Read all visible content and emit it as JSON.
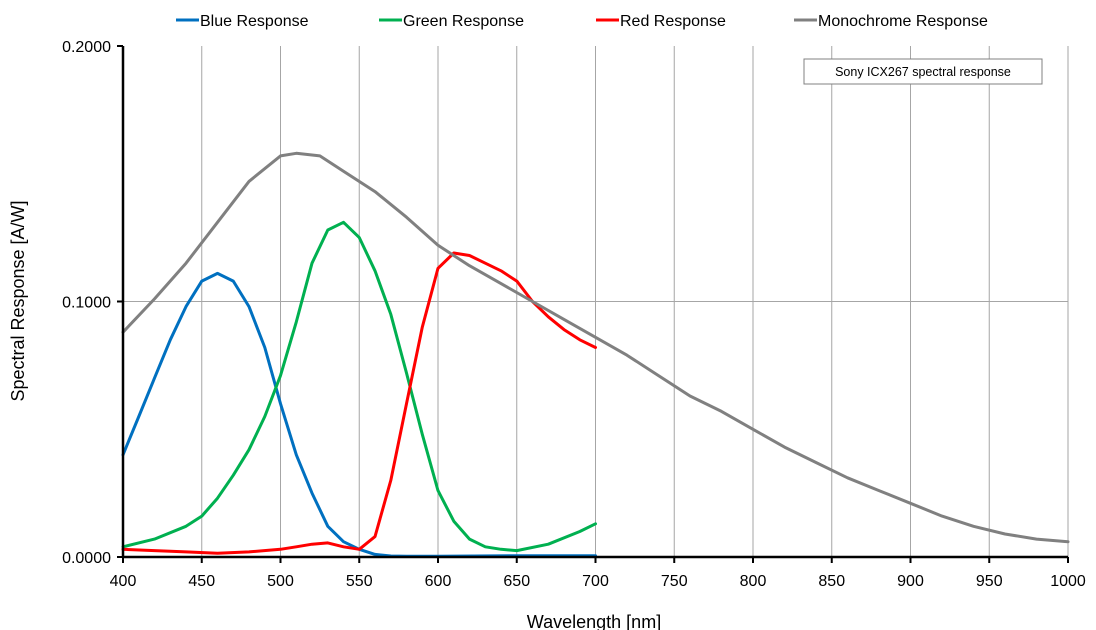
{
  "chart_data": {
    "type": "line",
    "title": "",
    "xlabel": "Wavelength [nm]",
    "ylabel": "Spectral Response [A/W]",
    "xlim": [
      400,
      1000
    ],
    "ylim": [
      0,
      0.2
    ],
    "xticks": [
      400,
      450,
      500,
      550,
      600,
      650,
      700,
      750,
      800,
      850,
      900,
      950,
      1000
    ],
    "xtick_labels": [
      "400",
      "450",
      "500",
      "550",
      "600",
      "650",
      "700",
      "750",
      "800",
      "850",
      "900",
      "950",
      "1000"
    ],
    "yticks": [
      0,
      0.1,
      0.2
    ],
    "ytick_labels": [
      "0.0000",
      "0.1000",
      "0.2000"
    ],
    "grid": "vertical lines at each x tick; horizontal line at 0.1000",
    "legend_position": "top",
    "annotation": "Sony ICX267 spectral response",
    "series": [
      {
        "name": "Blue Response",
        "color": "#0070c0",
        "x": [
          400,
          410,
          420,
          430,
          440,
          450,
          460,
          470,
          480,
          490,
          500,
          510,
          520,
          530,
          540,
          550,
          560,
          570,
          580,
          600,
          650,
          700
        ],
        "y": [
          0.04,
          0.055,
          0.07,
          0.085,
          0.098,
          0.108,
          0.111,
          0.108,
          0.098,
          0.082,
          0.06,
          0.04,
          0.025,
          0.012,
          0.006,
          0.003,
          0.001,
          0.0004,
          0.0003,
          0.0003,
          0.0005,
          0.0005
        ]
      },
      {
        "name": "Green Response",
        "color": "#00b050",
        "x": [
          400,
          420,
          440,
          450,
          460,
          470,
          480,
          490,
          500,
          510,
          520,
          530,
          540,
          550,
          560,
          570,
          580,
          590,
          600,
          610,
          620,
          630,
          640,
          650,
          670,
          690,
          700
        ],
        "y": [
          0.004,
          0.007,
          0.012,
          0.016,
          0.023,
          0.032,
          0.042,
          0.055,
          0.071,
          0.092,
          0.115,
          0.128,
          0.131,
          0.125,
          0.112,
          0.095,
          0.072,
          0.048,
          0.026,
          0.014,
          0.007,
          0.004,
          0.003,
          0.0025,
          0.005,
          0.01,
          0.013
        ]
      },
      {
        "name": "Red Response",
        "color": "#ff0000",
        "x": [
          400,
          420,
          440,
          460,
          480,
          500,
          510,
          520,
          530,
          540,
          550,
          560,
          570,
          580,
          590,
          600,
          610,
          620,
          630,
          640,
          650,
          660,
          670,
          680,
          690,
          700
        ],
        "y": [
          0.003,
          0.0025,
          0.002,
          0.0015,
          0.002,
          0.003,
          0.004,
          0.005,
          0.0055,
          0.004,
          0.003,
          0.008,
          0.03,
          0.06,
          0.09,
          0.113,
          0.119,
          0.118,
          0.115,
          0.112,
          0.108,
          0.1,
          0.094,
          0.089,
          0.085,
          0.082
        ]
      },
      {
        "name": "Monochrome Response",
        "color": "#808080",
        "x": [
          400,
          420,
          440,
          460,
          480,
          500,
          510,
          525,
          540,
          560,
          580,
          600,
          620,
          640,
          660,
          680,
          700,
          720,
          740,
          760,
          780,
          800,
          820,
          840,
          860,
          880,
          900,
          920,
          940,
          960,
          980,
          1000
        ],
        "y": [
          0.088,
          0.101,
          0.115,
          0.131,
          0.147,
          0.157,
          0.158,
          0.157,
          0.151,
          0.143,
          0.133,
          0.122,
          0.114,
          0.107,
          0.1,
          0.093,
          0.086,
          0.079,
          0.071,
          0.063,
          0.057,
          0.05,
          0.043,
          0.037,
          0.031,
          0.026,
          0.021,
          0.016,
          0.012,
          0.009,
          0.007,
          0.006
        ]
      }
    ]
  }
}
